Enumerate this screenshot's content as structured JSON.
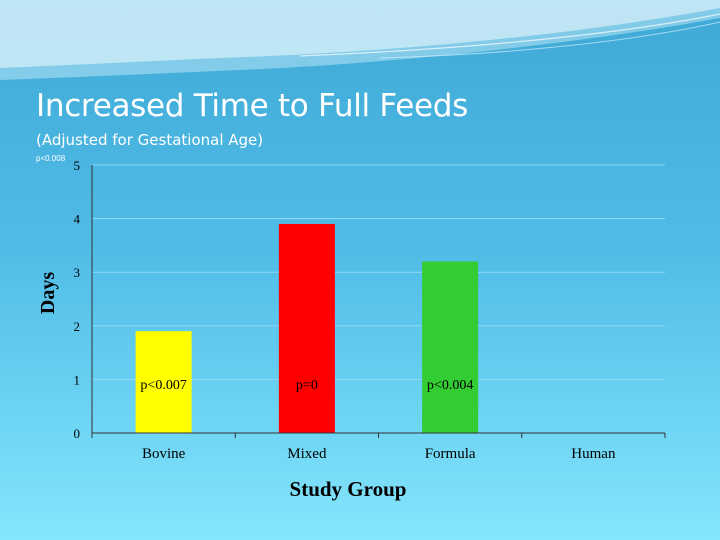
{
  "slide": {
    "title": "Increased Time to Full Feeds",
    "subtitle": "(Adjusted for Gestational Age)",
    "corner_note": "p<0.008"
  },
  "colors": {
    "background_top": "#3fa9d6",
    "background_bottom": "#86e6fb",
    "gridline": "#8fdcf5",
    "axis": "#333333"
  },
  "chart_data": {
    "type": "bar",
    "title": "",
    "xlabel": "Study Group",
    "ylabel": "Days",
    "ylim": [
      0,
      5
    ],
    "yticks": [
      0,
      1,
      2,
      3,
      4,
      5
    ],
    "grid": true,
    "categories": [
      "Bovine",
      "Mixed",
      "Formula",
      "Human"
    ],
    "values": [
      1.9,
      3.9,
      3.2,
      null
    ],
    "bar_colors": [
      "#ffff00",
      "#ff0000",
      "#33cc33",
      null
    ],
    "annotations": [
      "p<0.007",
      "p=0",
      "p<0.004",
      ""
    ]
  }
}
